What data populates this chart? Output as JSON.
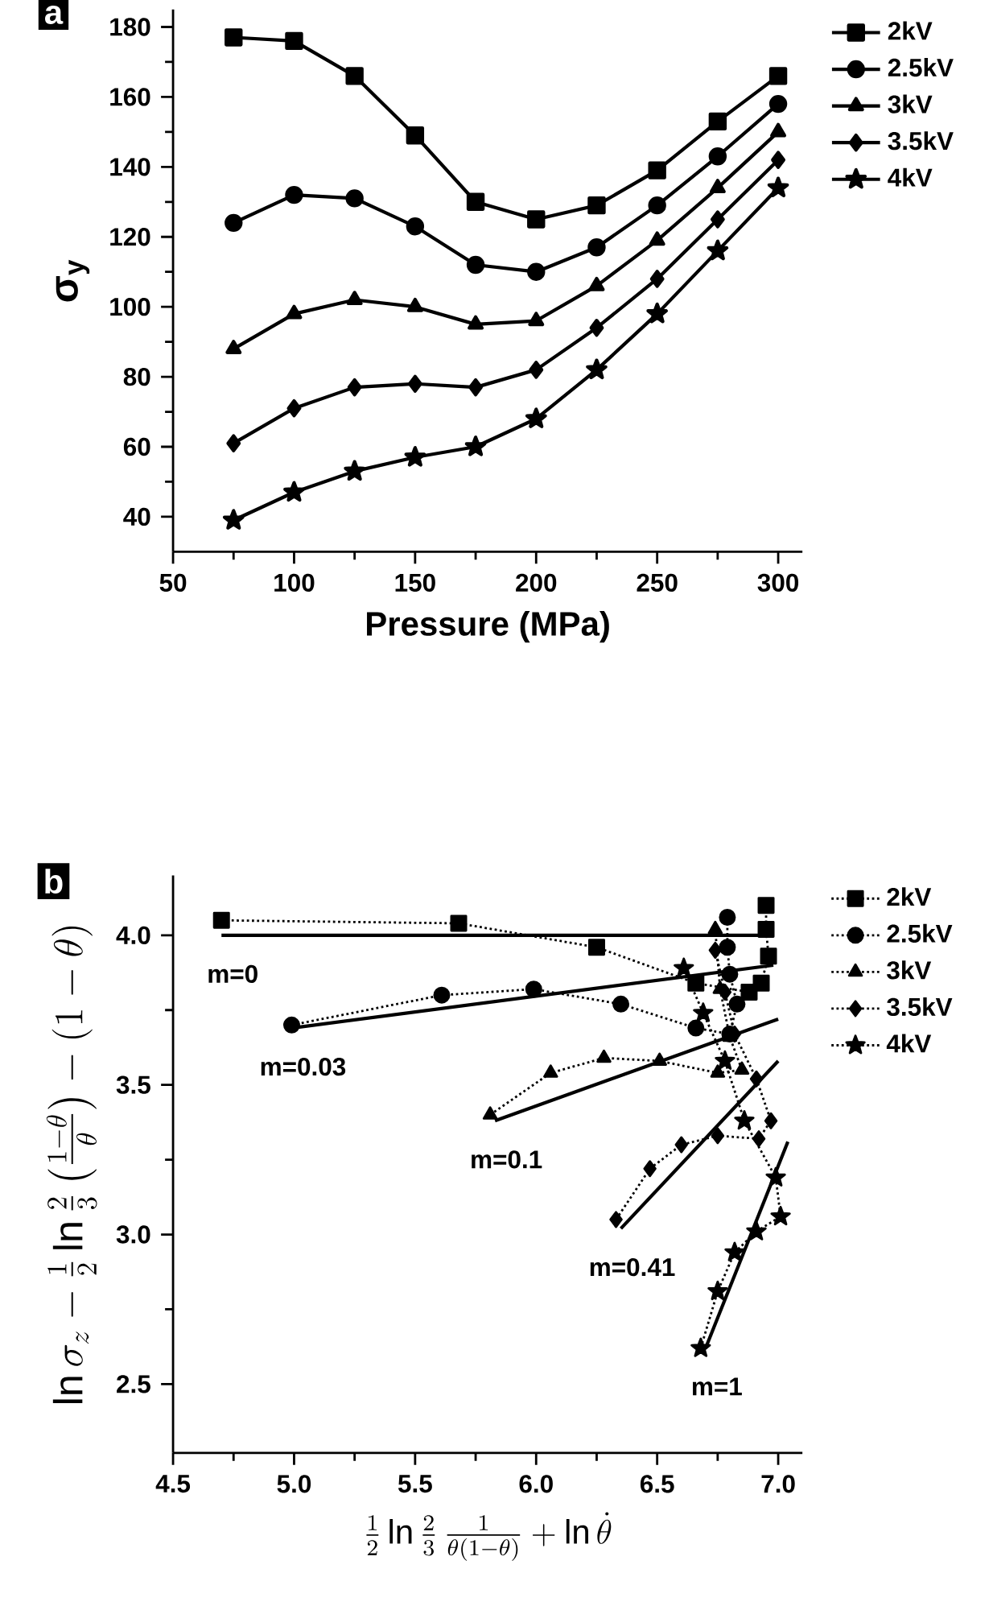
{
  "chart_data": [
    {
      "type": "line",
      "xlabel": "Pressure (MPa)",
      "ylabel": "σ$_{y}$",
      "annotations": [
        "a"
      ],
      "x": [
        75,
        100,
        125,
        150,
        175,
        200,
        225,
        250,
        275,
        300
      ],
      "xlim": [
        50,
        310
      ],
      "ylim": [
        30,
        185
      ],
      "xticks": [
        50,
        100,
        150,
        200,
        250,
        300
      ],
      "yticks": [
        40,
        60,
        80,
        100,
        120,
        140,
        160,
        180
      ],
      "legend": "top right",
      "line_style": "solid",
      "series": [
        {
          "name": "2kV",
          "color": "#000000",
          "marker": "square",
          "values": [
            177,
            176,
            166,
            149,
            130,
            125,
            129,
            139,
            153,
            166
          ]
        },
        {
          "name": "2.5kV",
          "color": "#000000",
          "marker": "circle",
          "values": [
            124,
            132,
            131,
            123,
            112,
            110,
            117,
            129,
            143,
            158
          ]
        },
        {
          "name": "3kV",
          "color": "#000000",
          "marker": "triangle",
          "values": [
            88,
            98,
            102,
            100,
            95,
            96,
            106,
            119,
            134,
            150
          ]
        },
        {
          "name": "3.5kV",
          "color": "#000000",
          "marker": "diamond",
          "values": [
            61,
            71,
            77,
            78,
            77,
            82,
            94,
            108,
            125,
            142
          ]
        },
        {
          "name": "4kV",
          "color": "#000000",
          "marker": "star",
          "values": [
            39,
            47,
            53,
            57,
            60,
            68,
            82,
            98,
            116,
            134
          ]
        }
      ]
    },
    {
      "type": "line",
      "xlabel": "\\frac{1}{2}\\ln\\frac{2}{3}\\,\\frac{1}{\\theta(1-\\theta)}+\\ln\\dot{\\theta}",
      "ylabel": "\\ln\\sigma_z-\\frac{1}{2}\\ln\\frac{2}{3}\\left(\\frac{1-\\theta}{\\theta}\\right)-(1-\\theta)",
      "annotations": [
        "b",
        {
          "text": "m=0",
          "x": 4.7,
          "y": 4.0
        },
        {
          "text": "m=0.03",
          "x": 4.99,
          "y": 3.69
        },
        {
          "text": "m=0.1",
          "x": 5.83,
          "y": 3.38
        },
        {
          "text": "m=0.41",
          "x": 6.35,
          "y": 3.02
        },
        {
          "text": "m=1",
          "x": 6.7,
          "y": 2.62
        }
      ],
      "xlim": [
        4.5,
        7.1
      ],
      "ylim": [
        2.27,
        4.2
      ],
      "xticks": [
        4.5,
        {
          "value": 5,
          "label": "5.0"
        },
        5.5,
        {
          "value": 6,
          "label": "6.0"
        },
        6.5,
        {
          "value": 7,
          "label": "7.0"
        }
      ],
      "yticks": [
        2.5,
        {
          "value": 3,
          "label": "3.0"
        },
        3.5,
        {
          "value": 4,
          "label": "4.0"
        }
      ],
      "legend": "top right",
      "line_style": "dotted",
      "series": [
        {
          "name": "2kV",
          "color": "#000000",
          "marker": "square",
          "x": [
            4.7,
            5.68,
            6.25,
            6.66,
            6.88,
            6.93,
            6.96,
            6.95,
            6.95
          ],
          "values": [
            4.05,
            4.04,
            3.96,
            3.84,
            3.81,
            3.84,
            3.93,
            4.02,
            4.1
          ]
        },
        {
          "name": "2.5kV",
          "color": "#000000",
          "marker": "circle",
          "x": [
            4.99,
            5.61,
            5.99,
            6.35,
            6.66,
            6.8,
            6.83,
            6.8,
            6.79,
            6.79
          ],
          "values": [
            3.7,
            3.8,
            3.82,
            3.77,
            3.69,
            3.67,
            3.77,
            3.87,
            3.96,
            4.06
          ]
        },
        {
          "name": "3kV",
          "color": "#000000",
          "marker": "triangle",
          "x": [
            5.81,
            6.06,
            6.28,
            6.51,
            6.75,
            6.85,
            6.8,
            6.76,
            6.74
          ],
          "values": [
            3.4,
            3.54,
            3.59,
            3.58,
            3.54,
            3.55,
            3.66,
            3.82,
            4.02
          ]
        },
        {
          "name": "3.5kV",
          "color": "#000000",
          "marker": "diamond",
          "x": [
            6.33,
            6.47,
            6.6,
            6.75,
            6.92,
            6.97,
            6.91,
            6.82,
            6.78,
            6.74
          ],
          "values": [
            3.05,
            3.22,
            3.3,
            3.33,
            3.32,
            3.38,
            3.52,
            3.67,
            3.81,
            3.95
          ]
        },
        {
          "name": "4kV",
          "color": "#000000",
          "marker": "star",
          "x": [
            6.68,
            6.75,
            6.82,
            6.91,
            7.01,
            6.99,
            6.86,
            6.78,
            6.69,
            6.61
          ],
          "values": [
            2.62,
            2.81,
            2.94,
            3.01,
            3.06,
            3.19,
            3.38,
            3.58,
            3.74,
            3.89
          ]
        },
        {
          "type": "line",
          "color": "#000000",
          "marker": "none",
          "line_style": "solid",
          "x": [
            4.7,
            6.95
          ],
          "values": [
            4.0,
            4.0
          ]
        },
        {
          "type": "line",
          "color": "#000000",
          "marker": "none",
          "line_style": "solid",
          "x": [
            4.99,
            6.98
          ],
          "values": [
            3.69,
            3.9
          ]
        },
        {
          "type": "line",
          "color": "#000000",
          "marker": "none",
          "line_style": "solid",
          "x": [
            5.83,
            7.0
          ],
          "values": [
            3.38,
            3.72
          ]
        },
        {
          "type": "line",
          "color": "#000000",
          "marker": "none",
          "line_style": "solid",
          "x": [
            6.35,
            7.0
          ],
          "values": [
            3.02,
            3.58
          ]
        },
        {
          "type": "line",
          "color": "#000000",
          "marker": "none",
          "line_style": "solid",
          "x": [
            6.7,
            7.04
          ],
          "values": [
            2.62,
            3.31
          ]
        }
      ]
    }
  ]
}
